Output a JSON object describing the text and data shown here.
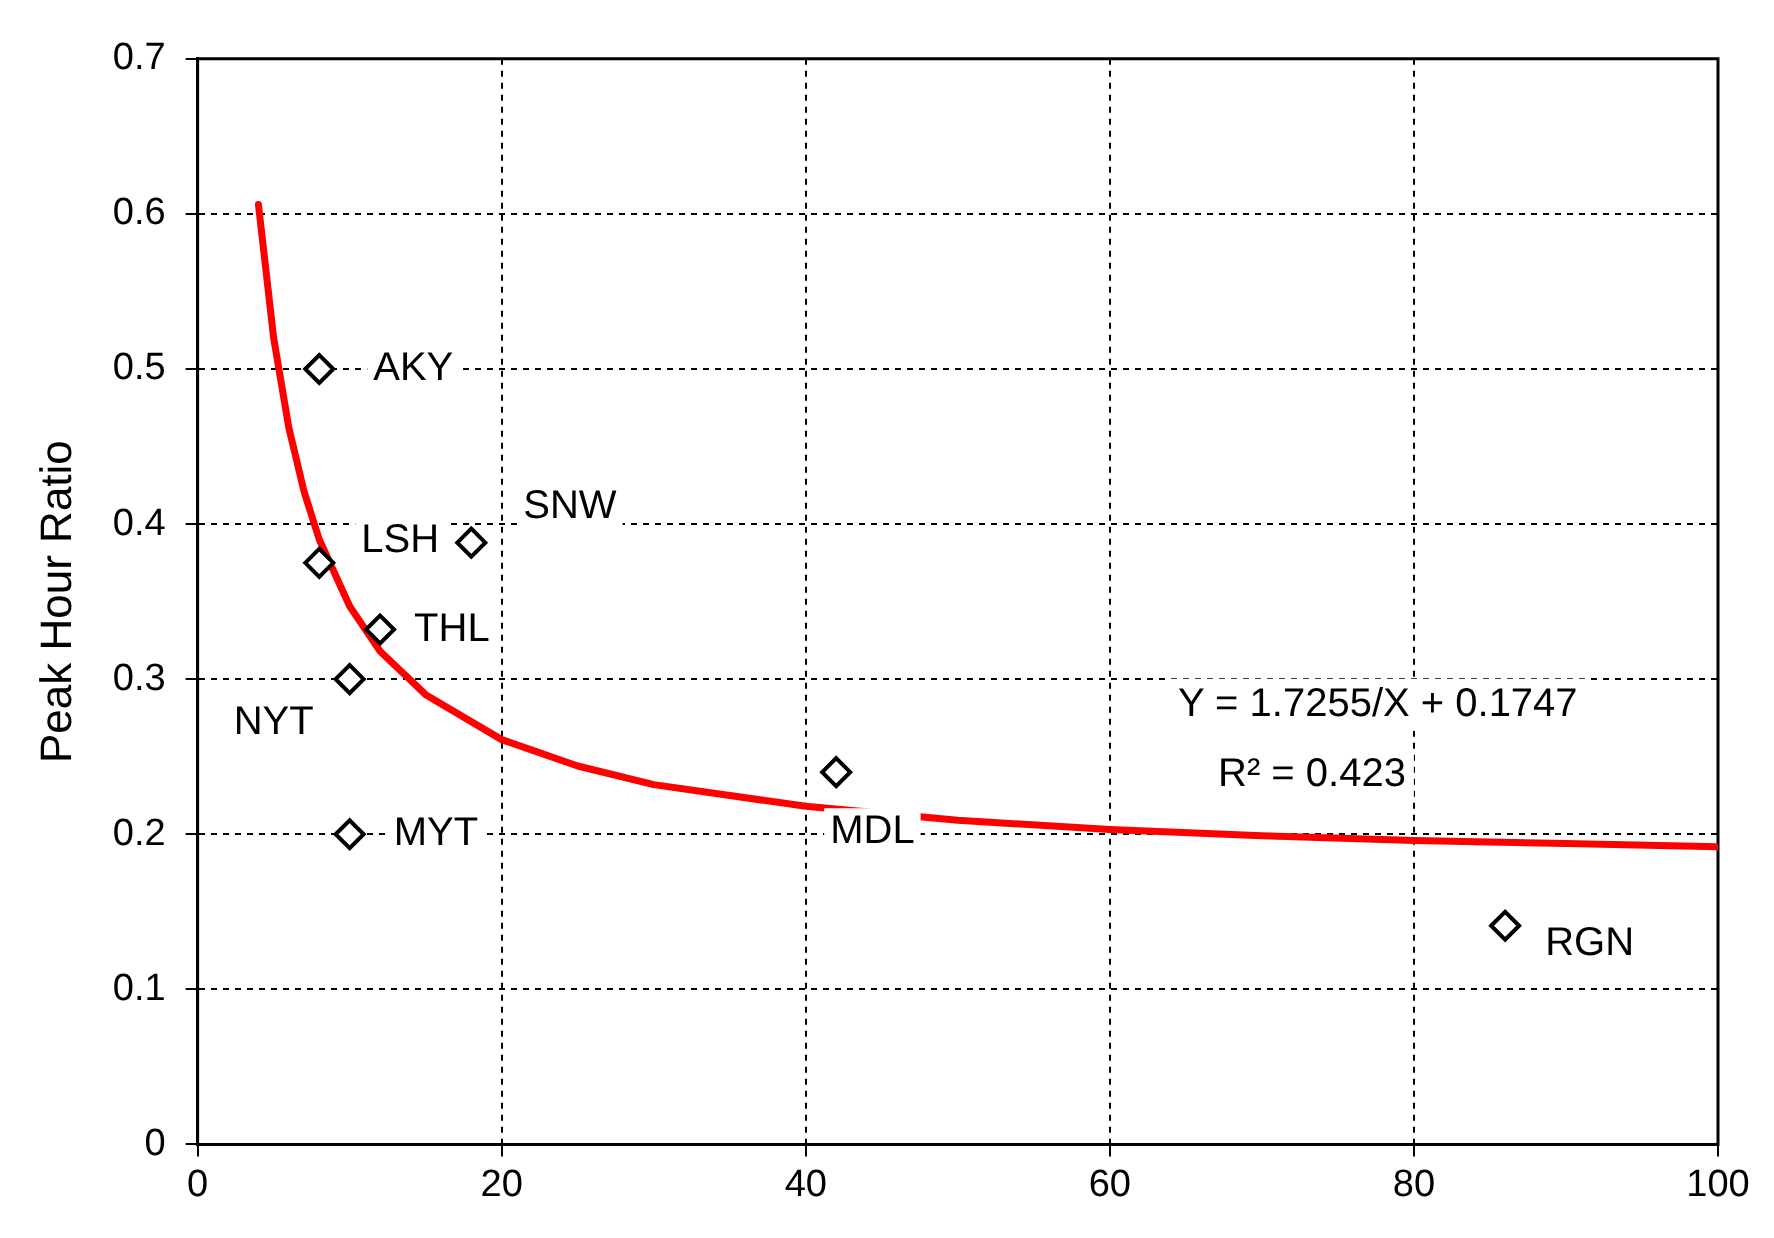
{
  "chart_data": {
    "type": "scatter",
    "ylabel": "Peak Hour Ratio",
    "xlim": [
      0,
      100
    ],
    "xticks": [
      0,
      20,
      40,
      60,
      80,
      100
    ],
    "ylim": [
      0,
      0.7
    ],
    "yticks": [
      0,
      0.1,
      0.2,
      0.3,
      0.4,
      0.5,
      0.6,
      0.7
    ],
    "grid": true,
    "legend": false,
    "marker": "diamond",
    "series": [
      {
        "type": "scatter",
        "color": "#000000",
        "x": [
          8,
          8,
          18,
          12,
          10,
          10,
          42,
          86
        ],
        "values": [
          0.5,
          0.375,
          0.388,
          0.332,
          0.3,
          0.2,
          0.24,
          0.141
        ]
      },
      {
        "type": "line",
        "color": "#ff0000",
        "marker": "none",
        "line_style": "solid",
        "x": [
          4,
          5,
          6,
          7,
          8,
          10,
          12,
          15,
          20,
          25,
          30,
          40,
          50,
          60,
          70,
          80,
          90,
          100
        ],
        "values": [
          0.606,
          0.52,
          0.462,
          0.421,
          0.39,
          0.347,
          0.318,
          0.29,
          0.261,
          0.244,
          0.232,
          0.218,
          0.209,
          0.203,
          0.199,
          0.196,
          0.194,
          0.192
        ]
      }
    ],
    "annotations": [
      {
        "text": "AKY",
        "x": 8,
        "y": 0.5
      },
      {
        "text": "LSH",
        "x": 8,
        "y": 0.375
      },
      {
        "text": "SNW",
        "x": 18,
        "y": 0.388
      },
      {
        "text": "THL",
        "x": 12,
        "y": 0.332
      },
      {
        "text": "NYT",
        "x": 10,
        "y": 0.3
      },
      {
        "text": "MYT",
        "x": 10,
        "y": 0.2
      },
      {
        "text": "MDL",
        "x": 42,
        "y": 0.24
      },
      {
        "text": "RGN",
        "x": 86,
        "y": 0.141
      },
      "Y = 1.7255/X + 0.1747",
      "R² = 0.423"
    ]
  }
}
